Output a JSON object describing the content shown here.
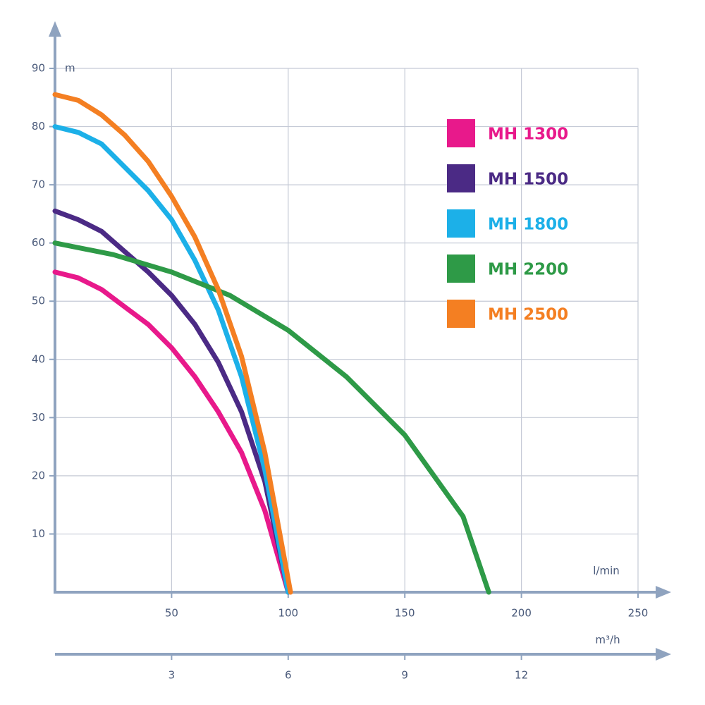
{
  "chart_data": {
    "type": "line",
    "y_label": "m",
    "x_label": "l/min",
    "x2_label": "m³/h",
    "xlim": [
      0,
      250
    ],
    "xticks": [
      50,
      100,
      150,
      200,
      250
    ],
    "x2lim": [
      0,
      15
    ],
    "x2ticks": [
      3,
      6,
      9,
      12
    ],
    "ylim": [
      0,
      90
    ],
    "yticks": [
      10,
      20,
      30,
      40,
      50,
      60,
      70,
      80,
      90
    ],
    "grid": true,
    "series": [
      {
        "name": "MH 1300",
        "color": "#e8198b",
        "x": [
          0,
          10,
          20,
          30,
          40,
          50,
          60,
          70,
          80,
          90,
          100
        ],
        "values": [
          55,
          54,
          52,
          49,
          46,
          42,
          37,
          31,
          24,
          14,
          0
        ]
      },
      {
        "name": "MH 1500",
        "color": "#4b2a85",
        "x": [
          0,
          10,
          20,
          30,
          40,
          50,
          60,
          70,
          80,
          90,
          100
        ],
        "values": [
          65.5,
          64,
          62,
          58.5,
          55,
          51,
          46,
          39.5,
          31,
          19,
          0
        ]
      },
      {
        "name": "MH 1800",
        "color": "#1cb0e8",
        "x": [
          0,
          10,
          20,
          30,
          40,
          50,
          60,
          70,
          80,
          90,
          100
        ],
        "values": [
          80,
          79,
          77,
          73,
          69,
          64,
          57,
          48.5,
          37,
          21,
          0
        ]
      },
      {
        "name": "MH 2200",
        "color": "#2e9a47",
        "x": [
          0,
          25,
          50,
          75,
          100,
          125,
          150,
          175,
          186
        ],
        "values": [
          60,
          58,
          55,
          51,
          45,
          37,
          27,
          13,
          0
        ]
      },
      {
        "name": "MH 2500",
        "color": "#f47f22",
        "x": [
          0,
          10,
          20,
          30,
          40,
          50,
          60,
          70,
          80,
          90,
          101
        ],
        "values": [
          85.5,
          84.5,
          82,
          78.5,
          74,
          68,
          61,
          52,
          40.5,
          24,
          0
        ]
      }
    ]
  }
}
